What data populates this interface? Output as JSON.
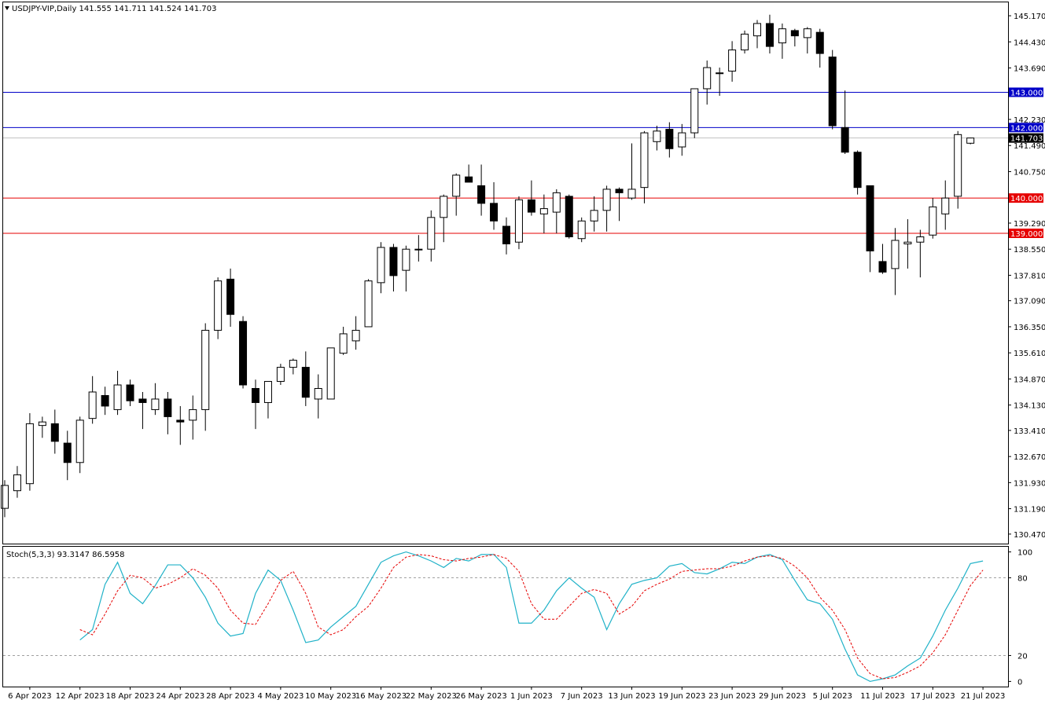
{
  "header": {
    "symbol_line": "USDJPY-VIP,Daily  141.555 141.711 141.524 141.703"
  },
  "indicator": {
    "label": "Stoch(5,3,3) 93.3147 86.5958"
  },
  "colors": {
    "background": "#ffffff",
    "candle_up_fill": "#ffffff",
    "candle_down_fill": "#000000",
    "candle_outline": "#000000",
    "resistance_line": "#0000c8",
    "support_line": "#e60000",
    "stoch_main": "#20b2c8",
    "stoch_signal": "#e60000",
    "current_price_line": "#c0c0c0",
    "level_label_blue_bg": "#0000c8",
    "level_label_red_bg": "#e60000",
    "current_label_bg": "#000000"
  },
  "chart_data": [
    {
      "type": "candlestick",
      "title": "USDJPY-VIP,Daily",
      "ylim": [
        130.2,
        145.55
      ],
      "y_ticks": [
        "145.170",
        "144.430",
        "143.690",
        "142.230",
        "141.490",
        "140.750",
        "139.290",
        "138.550",
        "137.810",
        "137.090",
        "136.350",
        "135.610",
        "134.870",
        "134.130",
        "133.410",
        "132.670",
        "131.930",
        "131.190",
        "130.470"
      ],
      "x_tick_labels": [
        "6 Apr 2023",
        "12 Apr 2023",
        "18 Apr 2023",
        "24 Apr 2023",
        "28 Apr 2023",
        "4 May 2023",
        "10 May 2023",
        "16 May 2023",
        "22 May 2023",
        "26 May 2023",
        "1 Jun 2023",
        "7 Jun 2023",
        "13 Jun 2023",
        "19 Jun 2023",
        "23 Jun 2023",
        "29 Jun 2023",
        "5 Jul 2023",
        "11 Jul 2023",
        "17 Jul 2023",
        "21 Jul 2023"
      ],
      "x_tick_bar_index": [
        2,
        6,
        10,
        14,
        18,
        22,
        26,
        30,
        34,
        38,
        42,
        46,
        50,
        54,
        58,
        62,
        66,
        70,
        74,
        78
      ],
      "horizontal_levels": [
        {
          "value": 143.0,
          "label": "143.000",
          "color": "blue"
        },
        {
          "value": 142.0,
          "label": "142.000",
          "color": "blue"
        },
        {
          "value": 140.0,
          "label": "140.000",
          "color": "red"
        },
        {
          "value": 139.0,
          "label": "139.000",
          "color": "red"
        }
      ],
      "current_price": {
        "value": 141.703,
        "label": "141.703"
      },
      "candles": [
        {
          "o": 131.2,
          "h": 132.0,
          "l": 130.95,
          "c": 131.85
        },
        {
          "o": 131.7,
          "h": 132.4,
          "l": 131.5,
          "c": 132.15
        },
        {
          "o": 131.9,
          "h": 133.9,
          "l": 131.7,
          "c": 133.6
        },
        {
          "o": 133.55,
          "h": 133.8,
          "l": 133.2,
          "c": 133.65
        },
        {
          "o": 133.6,
          "h": 134.0,
          "l": 132.75,
          "c": 133.1
        },
        {
          "o": 133.05,
          "h": 133.4,
          "l": 132.0,
          "c": 132.5
        },
        {
          "o": 132.5,
          "h": 133.8,
          "l": 132.2,
          "c": 133.7
        },
        {
          "o": 133.75,
          "h": 134.95,
          "l": 133.6,
          "c": 134.5
        },
        {
          "o": 134.4,
          "h": 134.65,
          "l": 133.85,
          "c": 134.1
        },
        {
          "o": 134.0,
          "h": 135.1,
          "l": 133.85,
          "c": 134.7
        },
        {
          "o": 134.7,
          "h": 134.85,
          "l": 134.1,
          "c": 134.25
        },
        {
          "o": 134.3,
          "h": 134.5,
          "l": 133.45,
          "c": 134.2
        },
        {
          "o": 134.0,
          "h": 134.75,
          "l": 133.85,
          "c": 134.3
        },
        {
          "o": 134.3,
          "h": 134.5,
          "l": 133.3,
          "c": 133.8
        },
        {
          "o": 133.7,
          "h": 134.1,
          "l": 133.0,
          "c": 133.65
        },
        {
          "o": 133.7,
          "h": 134.4,
          "l": 133.15,
          "c": 134.0
        },
        {
          "o": 134.0,
          "h": 136.45,
          "l": 133.4,
          "c": 136.25
        },
        {
          "o": 136.25,
          "h": 137.75,
          "l": 136.0,
          "c": 137.65
        },
        {
          "o": 137.7,
          "h": 138.0,
          "l": 136.35,
          "c": 136.7
        },
        {
          "o": 136.5,
          "h": 136.65,
          "l": 134.6,
          "c": 134.7
        },
        {
          "o": 134.6,
          "h": 134.85,
          "l": 133.45,
          "c": 134.2
        },
        {
          "o": 134.2,
          "h": 134.8,
          "l": 133.75,
          "c": 134.8
        },
        {
          "o": 134.8,
          "h": 135.3,
          "l": 134.7,
          "c": 135.2
        },
        {
          "o": 135.2,
          "h": 135.45,
          "l": 135.0,
          "c": 135.4
        },
        {
          "o": 135.2,
          "h": 135.65,
          "l": 134.1,
          "c": 134.35
        },
        {
          "o": 134.3,
          "h": 135.0,
          "l": 133.75,
          "c": 134.6
        },
        {
          "o": 134.3,
          "h": 135.75,
          "l": 134.3,
          "c": 135.75
        },
        {
          "o": 135.6,
          "h": 136.35,
          "l": 135.55,
          "c": 136.15
        },
        {
          "o": 135.95,
          "h": 136.65,
          "l": 135.7,
          "c": 136.25
        },
        {
          "o": 136.35,
          "h": 137.7,
          "l": 136.35,
          "c": 137.65
        },
        {
          "o": 137.6,
          "h": 138.75,
          "l": 137.3,
          "c": 138.6
        },
        {
          "o": 138.6,
          "h": 138.7,
          "l": 137.35,
          "c": 137.8
        },
        {
          "o": 137.95,
          "h": 138.65,
          "l": 137.35,
          "c": 138.55
        },
        {
          "o": 138.55,
          "h": 138.95,
          "l": 138.2,
          "c": 138.55
        },
        {
          "o": 138.55,
          "h": 139.65,
          "l": 138.2,
          "c": 139.45
        },
        {
          "o": 139.45,
          "h": 140.1,
          "l": 138.75,
          "c": 140.05
        },
        {
          "o": 140.05,
          "h": 140.7,
          "l": 139.5,
          "c": 140.65
        },
        {
          "o": 140.6,
          "h": 140.95,
          "l": 140.45,
          "c": 140.45
        },
        {
          "o": 140.35,
          "h": 140.95,
          "l": 139.5,
          "c": 139.85
        },
        {
          "o": 139.85,
          "h": 140.45,
          "l": 139.1,
          "c": 139.35
        },
        {
          "o": 139.2,
          "h": 139.45,
          "l": 138.4,
          "c": 138.7
        },
        {
          "o": 138.75,
          "h": 140.05,
          "l": 138.55,
          "c": 139.95
        },
        {
          "o": 139.95,
          "h": 140.5,
          "l": 139.5,
          "c": 139.6
        },
        {
          "o": 139.55,
          "h": 140.1,
          "l": 139.0,
          "c": 139.7
        },
        {
          "o": 139.6,
          "h": 140.25,
          "l": 139.0,
          "c": 140.15
        },
        {
          "o": 140.05,
          "h": 140.1,
          "l": 138.85,
          "c": 138.9
        },
        {
          "o": 138.85,
          "h": 139.45,
          "l": 138.75,
          "c": 139.35
        },
        {
          "o": 139.35,
          "h": 140.05,
          "l": 139.05,
          "c": 139.65
        },
        {
          "o": 139.65,
          "h": 140.35,
          "l": 139.05,
          "c": 140.25
        },
        {
          "o": 140.25,
          "h": 140.3,
          "l": 139.35,
          "c": 140.15
        },
        {
          "o": 140.0,
          "h": 141.55,
          "l": 139.95,
          "c": 140.25
        },
        {
          "o": 140.3,
          "h": 141.9,
          "l": 139.85,
          "c": 141.85
        },
        {
          "o": 141.6,
          "h": 142.05,
          "l": 141.35,
          "c": 141.9
        },
        {
          "o": 141.95,
          "h": 142.15,
          "l": 141.15,
          "c": 141.4
        },
        {
          "o": 141.45,
          "h": 142.1,
          "l": 141.2,
          "c": 141.85
        },
        {
          "o": 141.85,
          "h": 143.1,
          "l": 141.7,
          "c": 143.1
        },
        {
          "o": 143.1,
          "h": 143.9,
          "l": 142.65,
          "c": 143.7
        },
        {
          "o": 143.55,
          "h": 143.7,
          "l": 142.9,
          "c": 143.55
        },
        {
          "o": 143.6,
          "h": 144.45,
          "l": 143.3,
          "c": 144.2
        },
        {
          "o": 144.2,
          "h": 144.75,
          "l": 144.1,
          "c": 144.65
        },
        {
          "o": 144.6,
          "h": 145.05,
          "l": 144.25,
          "c": 144.95
        },
        {
          "o": 144.95,
          "h": 145.2,
          "l": 144.1,
          "c": 144.3
        },
        {
          "o": 144.4,
          "h": 144.95,
          "l": 143.95,
          "c": 144.8
        },
        {
          "o": 144.75,
          "h": 144.8,
          "l": 144.3,
          "c": 144.6
        },
        {
          "o": 144.55,
          "h": 144.85,
          "l": 144.1,
          "c": 144.8
        },
        {
          "o": 144.7,
          "h": 144.8,
          "l": 143.7,
          "c": 144.1
        },
        {
          "o": 144.0,
          "h": 144.2,
          "l": 141.95,
          "c": 142.05
        },
        {
          "o": 142.0,
          "h": 143.05,
          "l": 141.25,
          "c": 141.3
        },
        {
          "o": 141.3,
          "h": 141.35,
          "l": 140.1,
          "c": 140.3
        },
        {
          "o": 140.35,
          "h": 140.35,
          "l": 137.9,
          "c": 138.5
        },
        {
          "o": 138.2,
          "h": 138.7,
          "l": 137.85,
          "c": 137.9
        },
        {
          "o": 138.0,
          "h": 139.15,
          "l": 137.25,
          "c": 138.8
        },
        {
          "o": 138.7,
          "h": 139.4,
          "l": 138.0,
          "c": 138.75
        },
        {
          "o": 138.75,
          "h": 139.1,
          "l": 137.75,
          "c": 138.9
        },
        {
          "o": 138.95,
          "h": 140.0,
          "l": 138.85,
          "c": 139.75
        },
        {
          "o": 139.55,
          "h": 140.5,
          "l": 139.1,
          "c": 140.0
        },
        {
          "o": 140.05,
          "h": 141.9,
          "l": 139.7,
          "c": 141.8
        },
        {
          "o": 141.555,
          "h": 141.711,
          "l": 141.524,
          "c": 141.703
        }
      ]
    },
    {
      "type": "line",
      "title": "Stoch(5,3,3) 93.3147 86.5958",
      "ylim": [
        -4,
        104
      ],
      "y_ticks": [
        "100",
        "80",
        "20",
        "0"
      ],
      "reference_levels": [
        80,
        20
      ],
      "series": [
        {
          "name": "main",
          "values": [
            32,
            40,
            75,
            92,
            68,
            60,
            74,
            90,
            90,
            80,
            65,
            45,
            35,
            37,
            68,
            86,
            78,
            55,
            30,
            32,
            42,
            50,
            58,
            75,
            92,
            97,
            100,
            97,
            93,
            88,
            95,
            93,
            98,
            98,
            88,
            45,
            45,
            55,
            70,
            80,
            72,
            65,
            40,
            60,
            75,
            78,
            80,
            89,
            91,
            84,
            83,
            87,
            92,
            91,
            96,
            98,
            94,
            78,
            63,
            60,
            48,
            25,
            5,
            0,
            2,
            5,
            12,
            18,
            35,
            55,
            72,
            91,
            93
          ]
        },
        {
          "name": "signal",
          "values": [
            40,
            36,
            52,
            70,
            82,
            80,
            72,
            75,
            80,
            87,
            82,
            72,
            55,
            45,
            44,
            60,
            78,
            85,
            68,
            42,
            36,
            40,
            50,
            58,
            72,
            88,
            96,
            98,
            97,
            94,
            93,
            95,
            96,
            98,
            95,
            85,
            60,
            48,
            48,
            58,
            68,
            71,
            68,
            52,
            58,
            70,
            75,
            79,
            85,
            86,
            87,
            87,
            89,
            93,
            96,
            97,
            95,
            89,
            80,
            65,
            55,
            40,
            18,
            6,
            2,
            3,
            7,
            12,
            22,
            36,
            55,
            74,
            86
          ]
        }
      ]
    }
  ]
}
